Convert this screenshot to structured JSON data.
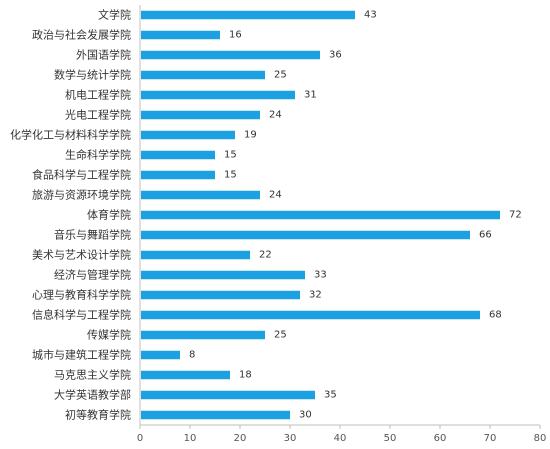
{
  "chart_data": {
    "type": "bar",
    "orientation": "horizontal",
    "categories": [
      "文学院",
      "政治与社会发展学院",
      "外国语学院",
      "数学与统计学院",
      "机电工程学院",
      "光电工程学院",
      "化学化工与材料科学学院",
      "生命科学学院",
      "食品科学与工程学院",
      "旅游与资源环境学院",
      "体育学院",
      "音乐与舞蹈学院",
      "美术与艺术设计学院",
      "经济与管理学院",
      "心理与教育科学学院",
      "信息科学与工程学院",
      "传媒学院",
      "城市与建筑工程学院",
      "马克思主义学院",
      "大学英语教学部",
      "初等教育学院"
    ],
    "values": [
      43,
      16,
      36,
      25,
      31,
      24,
      19,
      15,
      15,
      24,
      72,
      66,
      22,
      33,
      32,
      68,
      25,
      8,
      18,
      35,
      30
    ],
    "xlim": [
      0,
      80
    ],
    "xticks": [
      0,
      10,
      20,
      30,
      40,
      50,
      60,
      70,
      80
    ],
    "data_labels": true,
    "grid": false,
    "legend": "none",
    "bar_color": "#1BA1E2",
    "title": "",
    "xlabel": "",
    "ylabel": ""
  }
}
